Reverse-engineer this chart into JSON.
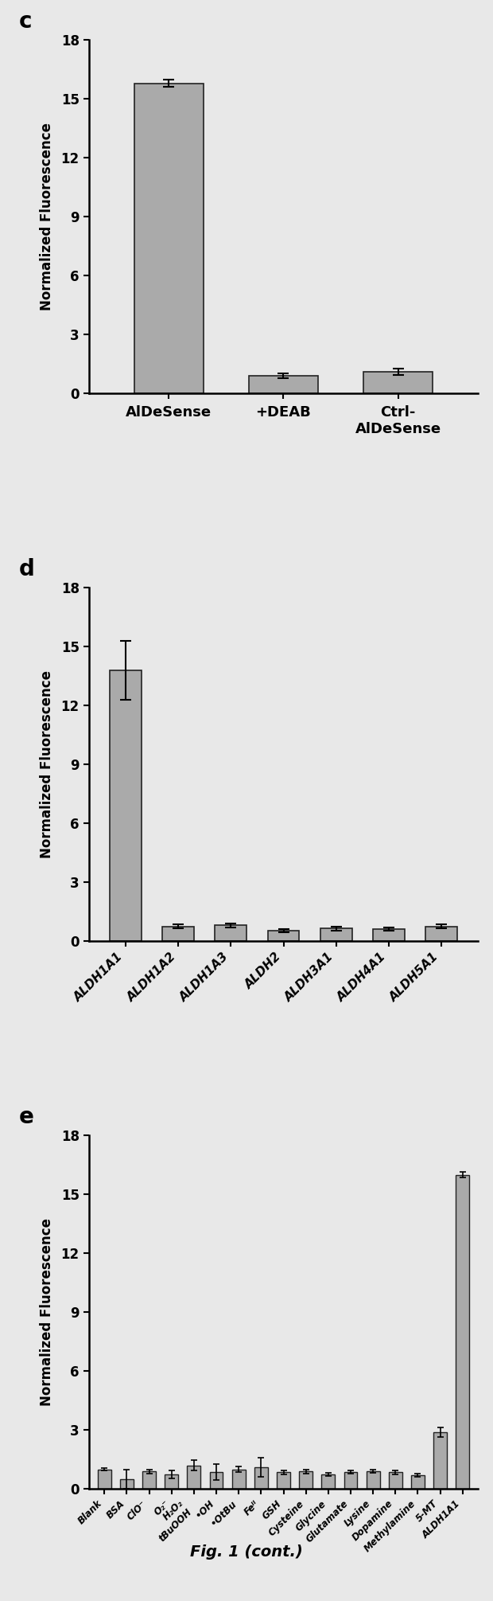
{
  "panel_c": {
    "categories": [
      "AlDeSense",
      "+DEAB",
      "Ctrl-\nAlDeSense"
    ],
    "values": [
      15.8,
      0.9,
      1.1
    ],
    "errors": [
      0.2,
      0.12,
      0.18
    ],
    "ylim": [
      0,
      18
    ],
    "yticks": [
      0,
      3,
      6,
      9,
      12,
      15,
      18
    ],
    "ylabel": "Normalized Fluorescence",
    "label": "c"
  },
  "panel_d": {
    "categories": [
      "ALDH1A1",
      "ALDH1A2",
      "ALDH1A3",
      "ALDH2",
      "ALDH3A1",
      "ALDH4A1",
      "ALDH5A1"
    ],
    "values": [
      13.8,
      0.75,
      0.8,
      0.55,
      0.65,
      0.6,
      0.75
    ],
    "errors": [
      1.5,
      0.1,
      0.1,
      0.08,
      0.1,
      0.08,
      0.1
    ],
    "ylim": [
      0,
      18
    ],
    "yticks": [
      0,
      3,
      6,
      9,
      12,
      15,
      18
    ],
    "ylabel": "Normalized Fluorescence",
    "label": "d"
  },
  "panel_e": {
    "categories": [
      "Blank",
      "BSA",
      "ClO⁻",
      "O₂⁻",
      "H₂O₂\ntBuOOH",
      "•OH",
      "•OtBu",
      "Feᴵᴵ",
      "GSH",
      "Cysteine",
      "Glycine",
      "Glutamate",
      "Lysine",
      "Dopamine",
      "Methylamine",
      "5-MT",
      "ALDH1A1"
    ],
    "values": [
      1.0,
      0.5,
      0.9,
      0.75,
      1.2,
      0.85,
      1.0,
      1.1,
      0.85,
      0.9,
      0.75,
      0.85,
      0.9,
      0.85,
      0.7,
      2.9,
      16.0
    ],
    "errors": [
      0.05,
      0.5,
      0.1,
      0.2,
      0.25,
      0.4,
      0.15,
      0.5,
      0.1,
      0.1,
      0.08,
      0.08,
      0.08,
      0.1,
      0.08,
      0.25,
      0.15
    ],
    "ylim": [
      0,
      18
    ],
    "yticks": [
      0,
      3,
      6,
      9,
      12,
      15,
      18
    ],
    "ylabel": "Normalized Fluorescence",
    "label": "e"
  },
  "bar_color": "#aaaaaa",
  "edge_color": "#222222",
  "background_color": "#e8e8e8",
  "fig_caption": "Fig. 1 (cont.)",
  "fig_width": 6.2,
  "fig_height": 20.11
}
